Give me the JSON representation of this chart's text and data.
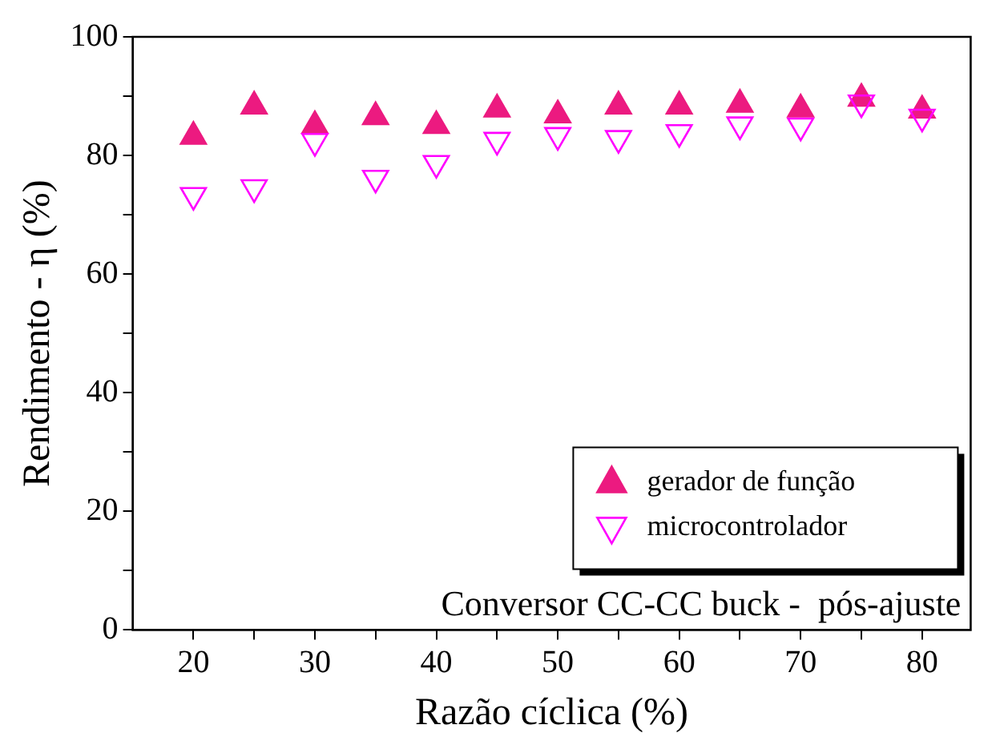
{
  "chart_data": {
    "type": "scatter",
    "xlabel": "Razão cíclica (%)",
    "ylabel": "Rendimento - η (%)",
    "xlim": [
      15,
      84
    ],
    "ylim": [
      0,
      100
    ],
    "xticks": [
      20,
      {
        "value": 25,
        "label": null
      },
      30,
      {
        "value": 35,
        "label": null
      },
      40,
      {
        "value": 45,
        "label": null
      },
      50,
      {
        "value": 55,
        "label": null
      },
      60,
      {
        "value": 65,
        "label": null
      },
      70,
      {
        "value": 75,
        "label": null
      },
      80
    ],
    "yticks": [
      0,
      {
        "value": 10,
        "label": null
      },
      20,
      {
        "value": 30,
        "label": null
      },
      40,
      {
        "value": 50,
        "label": null
      },
      60,
      {
        "value": 70,
        "label": null
      },
      80,
      {
        "value": 90,
        "label": null
      },
      100
    ],
    "x": [
      20,
      25,
      30,
      35,
      40,
      45,
      50,
      55,
      60,
      65,
      70,
      75,
      80
    ],
    "series": [
      {
        "name": "gerador de função",
        "color": "#ec1a80",
        "marker": "triangle",
        "values": [
          83.2,
          88.3,
          85,
          86.5,
          85,
          87.8,
          86.8,
          88.3,
          88.3,
          88.6,
          87.8,
          89.6,
          87.6
        ]
      },
      {
        "name": "microcontrolador",
        "color": "#ff00ff",
        "marker": "triangle-down",
        "values": [
          73.3,
          74.6,
          82.4,
          76.2,
          78.7,
          82.6,
          83.4,
          82.9,
          83.9,
          85.2,
          85,
          88.9,
          86.5
        ]
      }
    ],
    "legend": "bottom right",
    "grid": false,
    "annotations": [
      "Conversor CC-CC buck -  pós-ajuste"
    ]
  }
}
